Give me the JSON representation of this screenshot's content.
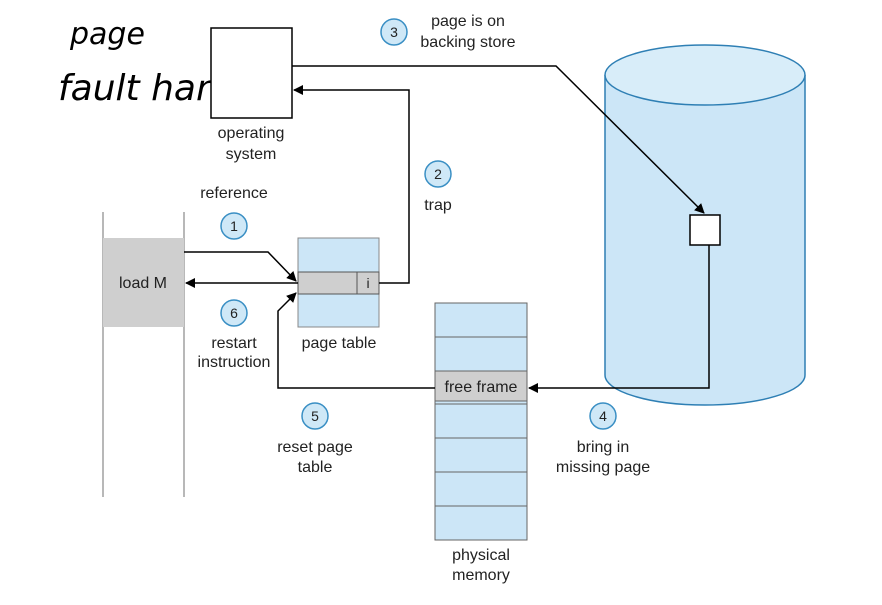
{
  "annotation": {
    "line1": "page",
    "line2": "fault handler"
  },
  "os": {
    "line1": "operating",
    "line2": "system"
  },
  "reference": "reference",
  "program": {
    "instruction": "load M"
  },
  "page_table": {
    "label": "page table",
    "invalid_bit": "i"
  },
  "physical_memory": {
    "free_frame": "free frame",
    "line1": "physical",
    "line2": "memory"
  },
  "steps": [
    {
      "num": "1"
    },
    {
      "num": "2",
      "line1": "trap"
    },
    {
      "num": "3",
      "line1": "page is on",
      "line2": "backing store"
    },
    {
      "num": "4",
      "line1": "bring in",
      "line2": "missing page"
    },
    {
      "num": "5",
      "line1": "reset page",
      "line2": "table"
    },
    {
      "num": "6",
      "line1": "restart",
      "line2": "instruction"
    }
  ],
  "colors": {
    "box_fill": "#cce6f7",
    "gray_fill": "#cfcfcf",
    "circle_fill": "#cfe8f7",
    "circle_stroke": "#3a8fc4",
    "cylinder_fill": "#cce6f7",
    "cylinder_stroke": "#2e7fb4"
  }
}
